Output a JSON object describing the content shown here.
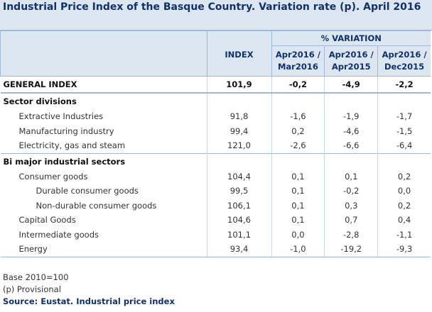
{
  "header": {
    "title": "Industrial Price Index of the Basque Country. Variation rate (p). April 2016"
  },
  "table": {
    "columns": {
      "index": "INDEX",
      "variation": "% VARIATION",
      "periods": [
        [
          "Apr2016 /",
          "Mar2016"
        ],
        [
          "Apr2016 /",
          "Apr2015"
        ],
        [
          "Apr2016 /",
          "Dec2015"
        ]
      ]
    },
    "general": {
      "label": "GENERAL INDEX",
      "values": [
        "101,9",
        "-0,2",
        "-4,9",
        "-2,2"
      ]
    },
    "sections": [
      {
        "title": "Sector divisions",
        "rows": [
          {
            "label": "Extractive Industries",
            "values": [
              "91,8",
              "-1,6",
              "-1,9",
              "-1,7"
            ]
          },
          {
            "label": "Manufacturing industry",
            "values": [
              "99,4",
              "0,2",
              "-4,6",
              "-1,5"
            ]
          },
          {
            "label": "Electricity, gas and steam",
            "values": [
              "121,0",
              "-2,6",
              "-6,6",
              "-6,4"
            ]
          }
        ]
      },
      {
        "title": "Bi major industrial sectors",
        "rows": [
          {
            "label": "Consumer goods",
            "values": [
              "104,4",
              "0,1",
              "0,1",
              "0,2"
            ],
            "children": [
              {
                "label": "Durable consumer goods",
                "values": [
                  "99,5",
                  "0,1",
                  "-0,2",
                  "0,0"
                ]
              },
              {
                "label": "Non-durable consumer goods",
                "values": [
                  "106,1",
                  "0,1",
                  "0,3",
                  "0,2"
                ]
              }
            ]
          },
          {
            "label": "Capital Goods",
            "values": [
              "104,6",
              "0,1",
              "0,7",
              "0,4"
            ]
          },
          {
            "label": "Intermediate goods",
            "values": [
              "101,1",
              "0,0",
              "-2,8",
              "-1,1"
            ]
          },
          {
            "label": "Energy",
            "values": [
              "93,4",
              "-1,0",
              "-19,2",
              "-9,3"
            ]
          }
        ]
      }
    ]
  },
  "notes": {
    "base": "Base 2010=100",
    "provisional": "(p) Provisional",
    "source": "Source: Eustat. Industrial price index"
  }
}
